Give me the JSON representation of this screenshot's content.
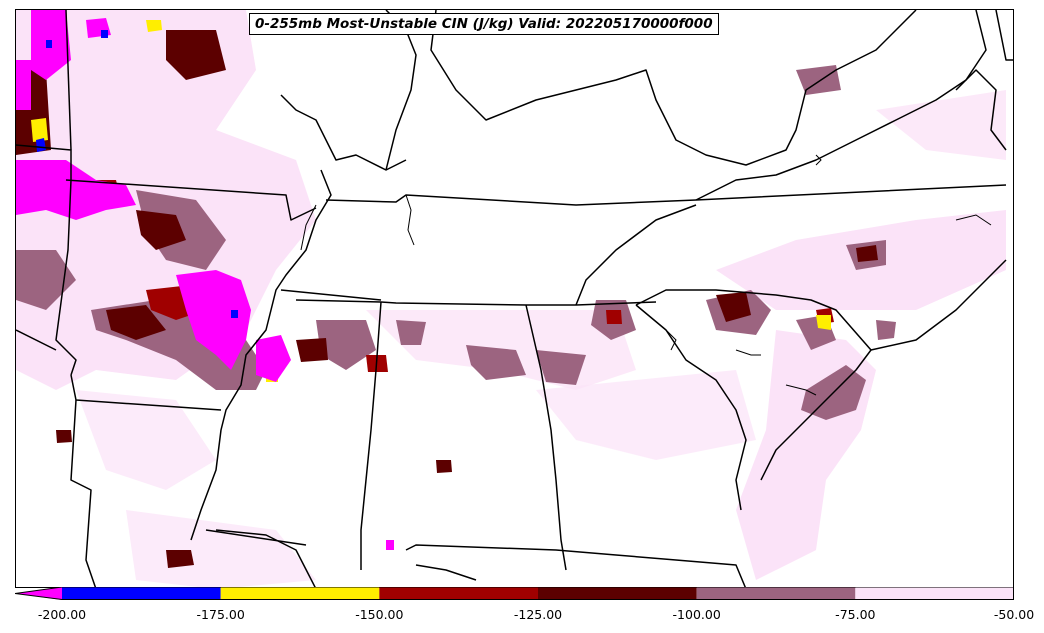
{
  "map": {
    "title": "0-255mb Most-Unstable CIN (J/kg) Valid: 202205170000f000",
    "region": "southeastern-united-states",
    "features": [
      "state-borders",
      "coastlines",
      "rivers",
      "lakes"
    ]
  },
  "colorbar": {
    "extend": "min",
    "ticks": [
      "-200.00",
      "-175.00",
      "-150.00",
      "-125.00",
      "-100.00",
      "-75.00",
      "-50.00"
    ],
    "bins": [
      {
        "from": -250,
        "to": -200,
        "color": "#ff00ff"
      },
      {
        "from": -200,
        "to": -175,
        "color": "#0000ff"
      },
      {
        "from": -175,
        "to": -150,
        "color": "#ffee00"
      },
      {
        "from": -150,
        "to": -125,
        "color": "#a00000"
      },
      {
        "from": -125,
        "to": -100,
        "color": "#5c0000"
      },
      {
        "from": -100,
        "to": -75,
        "color": "#9c6480"
      },
      {
        "from": -75,
        "to": -50,
        "color": "#fbe3f8"
      }
    ]
  }
}
